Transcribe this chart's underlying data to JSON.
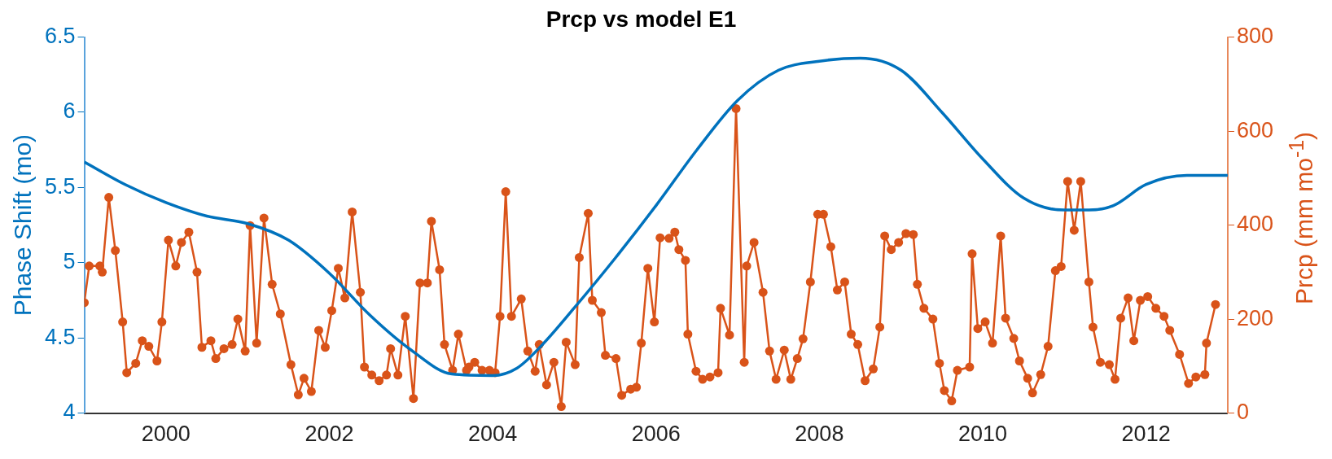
{
  "chart_data": {
    "type": "line",
    "title": "Prcp vs model E1",
    "ylabel": "Phase Shift (mo)",
    "y2label": "Prcp (mm mo$^{-1}$)",
    "xlim": [
      1999,
      2013
    ],
    "xticks": [
      2000,
      2002,
      2004,
      2006,
      2008,
      2010,
      2012
    ],
    "ylim": [
      4,
      6.5
    ],
    "yticks": [
      4,
      4.5,
      5,
      5.5,
      6,
      6.5
    ],
    "y2lim": [
      0,
      800
    ],
    "y2ticks": [
      0,
      200,
      400,
      600,
      800
    ],
    "grid": false,
    "legend": false,
    "series": [
      {
        "color": "#0072bd",
        "marker": "none",
        "x": [
          1999,
          1999.5,
          2000,
          2000.5,
          2001,
          2001.5,
          2002,
          2002.5,
          2003,
          2003.5,
          2004,
          2004.3,
          2004.6,
          2005,
          2005.5,
          2006,
          2006.5,
          2007,
          2007.5,
          2008,
          2008.5,
          2009,
          2009.5,
          2010,
          2010.5,
          2011,
          2011.3,
          2011.6,
          2012,
          2012.5,
          2013
        ],
        "values": [
          5.67,
          5.52,
          5.4,
          5.31,
          5.26,
          5.15,
          4.93,
          4.65,
          4.42,
          4.26,
          4.25,
          4.3,
          4.45,
          4.7,
          5.03,
          5.38,
          5.75,
          6.08,
          6.28,
          6.34,
          6.36,
          6.28,
          6.0,
          5.69,
          5.43,
          5.35,
          5.35,
          5.38,
          5.52,
          5.58,
          5.58
        ]
      },
      {
        "color": "#d95319",
        "marker": "circle",
        "axis": "y2",
        "x": [
          1999.0,
          1999.06,
          1999.19,
          1999.22,
          1999.3,
          1999.38,
          1999.47,
          1999.52,
          1999.63,
          1999.71,
          1999.79,
          1999.89,
          1999.95,
          2000.03,
          2000.12,
          2000.19,
          2000.28,
          2000.38,
          2000.44,
          2000.55,
          2000.61,
          2000.71,
          2000.81,
          2000.88,
          2000.97,
          2001.03,
          2001.11,
          2001.2,
          2001.3,
          2001.4,
          2001.53,
          2001.62,
          2001.69,
          2001.78,
          2001.87,
          2001.95,
          2002.03,
          2002.11,
          2002.19,
          2002.28,
          2002.38,
          2002.43,
          2002.52,
          2002.61,
          2002.7,
          2002.75,
          2002.84,
          2002.93,
          2003.03,
          2003.11,
          2003.2,
          2003.25,
          2003.35,
          2003.41,
          2003.51,
          2003.58,
          2003.68,
          2003.71,
          2003.78,
          2003.87,
          2003.96,
          2004.03,
          2004.09,
          2004.16,
          2004.23,
          2004.35,
          2004.43,
          2004.52,
          2004.57,
          2004.66,
          2004.75,
          2004.84,
          2004.9,
          2005.01,
          2005.06,
          2005.17,
          2005.22,
          2005.33,
          2005.38,
          2005.51,
          2005.58,
          2005.69,
          2005.76,
          2005.82,
          2005.9,
          2005.98,
          2006.05,
          2006.16,
          2006.23,
          2006.28,
          2006.36,
          2006.39,
          2006.49,
          2006.57,
          2006.66,
          2006.76,
          2006.79,
          2006.9,
          2006.98,
          2007.08,
          2007.11,
          2007.2,
          2007.31,
          2007.39,
          2007.47,
          2007.57,
          2007.65,
          2007.73,
          2007.8,
          2007.89,
          2007.98,
          2008.05,
          2008.14,
          2008.22,
          2008.31,
          2008.39,
          2008.47,
          2008.56,
          2008.66,
          2008.74,
          2008.8,
          2008.88,
          2008.97,
          2009.06,
          2009.15,
          2009.2,
          2009.28,
          2009.39,
          2009.47,
          2009.53,
          2009.62,
          2009.69,
          2009.84,
          2009.87,
          2009.94,
          2010.03,
          2010.12,
          2010.22,
          2010.28,
          2010.38,
          2010.45,
          2010.55,
          2010.61,
          2010.71,
          2010.8,
          2010.89,
          2010.96,
          2011.04,
          2011.12,
          2011.2,
          2011.3,
          2011.35,
          2011.44,
          2011.55,
          2011.62,
          2011.69,
          2011.78,
          2011.85,
          2011.93,
          2012.02,
          2012.12,
          2012.22,
          2012.29,
          2012.41,
          2012.52,
          2012.61,
          2012.72,
          2012.74,
          2012.85
        ],
        "values": [
          235,
          313,
          313,
          300,
          459,
          346,
          194,
          86,
          106,
          154,
          142,
          111,
          194,
          368,
          313,
          363,
          385,
          300,
          140,
          154,
          116,
          137,
          146,
          200,
          132,
          399,
          149,
          415,
          274,
          211,
          103,
          39,
          74,
          46,
          176,
          140,
          218,
          308,
          245,
          428,
          257,
          98,
          81,
          69,
          81,
          137,
          81,
          206,
          31,
          277,
          277,
          408,
          305,
          146,
          91,
          168,
          91,
          98,
          108,
          91,
          91,
          86,
          206,
          471,
          206,
          243,
          132,
          89,
          146,
          60,
          108,
          14,
          151,
          103,
          331,
          425,
          240,
          214,
          123,
          116,
          38,
          51,
          55,
          149,
          308,
          194,
          373,
          372,
          385,
          348,
          325,
          168,
          89,
          72,
          77,
          86,
          223,
          166,
          648,
          108,
          313,
          363,
          257,
          132,
          72,
          134,
          72,
          116,
          158,
          279,
          423,
          423,
          354,
          262,
          279,
          168,
          146,
          69,
          94,
          183,
          377,
          348,
          363,
          382,
          380,
          274,
          223,
          200,
          106,
          48,
          26,
          91,
          98,
          339,
          180,
          194,
          149,
          377,
          202,
          159,
          111,
          74,
          43,
          82,
          142,
          303,
          312,
          493,
          389,
          493,
          279,
          183,
          108,
          103,
          72,
          202,
          245,
          154,
          240,
          248,
          223,
          206,
          176,
          125,
          63,
          77,
          82,
          149,
          231
        ]
      }
    ]
  }
}
